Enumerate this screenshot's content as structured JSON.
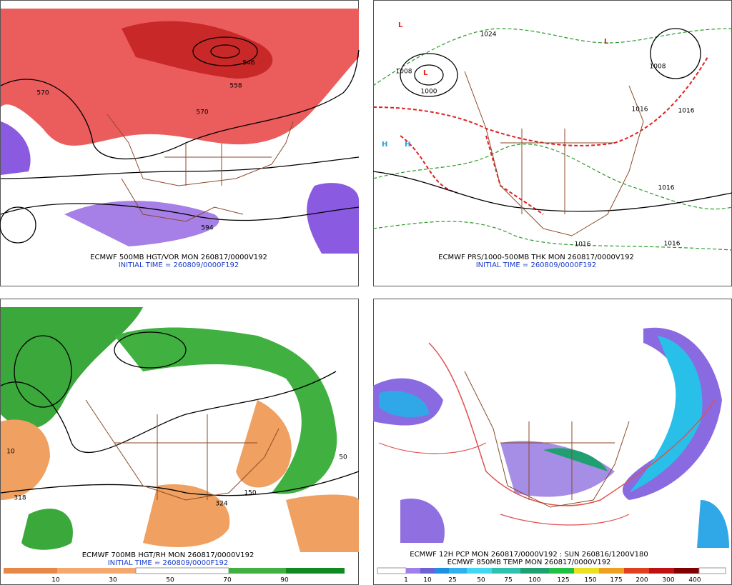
{
  "panels": [
    {
      "title": "ECMWF 500MB HGT/VOR MON 260817/0000V192",
      "initial": "INITIAL TIME = 260809/0000F192",
      "contour_labels": [
        "570",
        "546",
        "558",
        "570",
        "594"
      ]
    },
    {
      "title": "ECMWF PRS/1000-500MB THK MON 260817/0000V192",
      "initial": "INITIAL TIME = 260809/0000F192",
      "contour_labels": [
        "1024",
        "1008",
        "1000",
        "1008",
        "1016",
        "1016",
        "1016",
        "1016",
        "1016"
      ]
    },
    {
      "title": "ECMWF 700MB HGT/RH MON 260817/0000V192",
      "initial": "INITIAL TIME = 260809/0000F192",
      "contour_labels": [
        "318",
        "150",
        "324",
        "50",
        "10"
      ],
      "colorbar_labels": [
        "10",
        "30",
        "50",
        "70",
        "90"
      ]
    },
    {
      "title": "ECMWF 12H PCP MON 260817/0000V192 : SUN 260816/1200V180",
      "initial": "ECMWF 850MB TEMP MON 260817/0000V192",
      "colorbar_labels": [
        "1",
        "10",
        "25",
        "50",
        "75",
        "100",
        "125",
        "150",
        "175",
        "200",
        "300",
        "400"
      ]
    }
  ]
}
